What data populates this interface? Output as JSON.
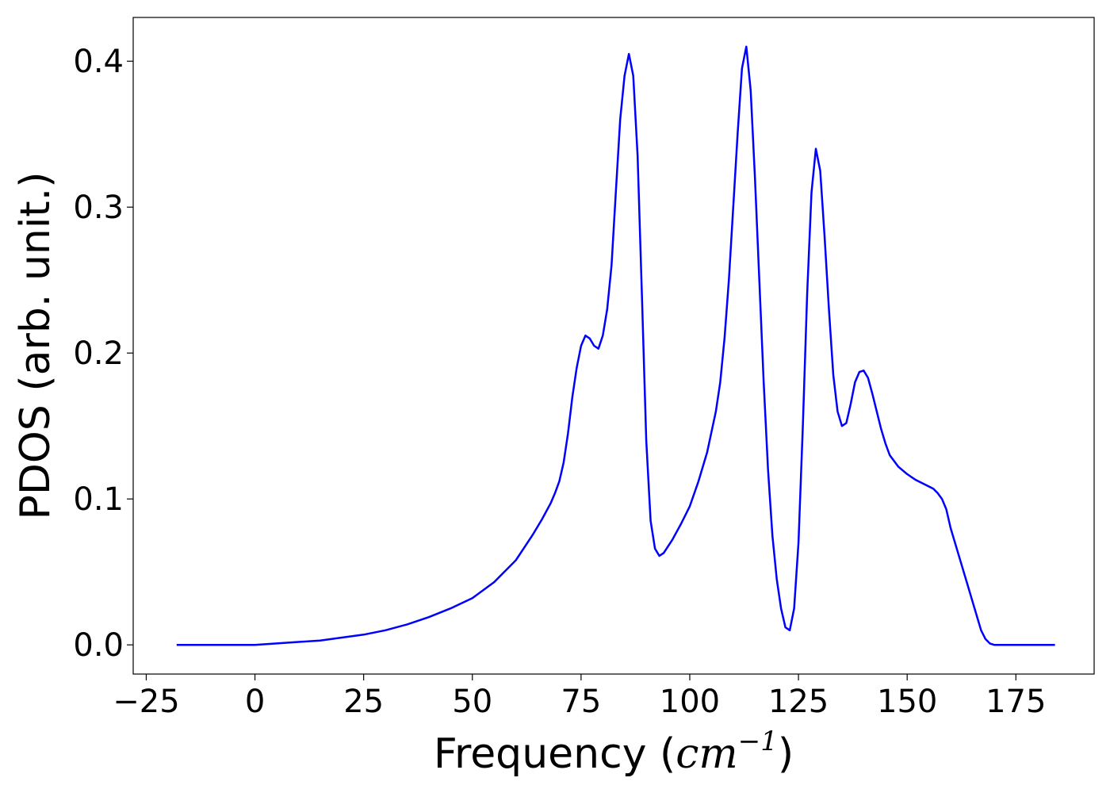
{
  "chart_data": {
    "type": "line",
    "title": "",
    "xlabel": "Frequency",
    "xlabel_unit_base": "cm",
    "xlabel_unit_exp": "−1",
    "ylabel": "PDOS (arb. unit.)",
    "xlim": [
      -28,
      193
    ],
    "ylim": [
      -0.02,
      0.43
    ],
    "xticks": [
      -25,
      0,
      25,
      50,
      75,
      100,
      125,
      150,
      175
    ],
    "xtick_labels": [
      "−25",
      "0",
      "25",
      "50",
      "75",
      "100",
      "125",
      "150",
      "175"
    ],
    "yticks": [
      0.0,
      0.1,
      0.2,
      0.3,
      0.4
    ],
    "ytick_labels": [
      "0.0",
      "0.1",
      "0.2",
      "0.3",
      "0.4"
    ],
    "grid": false,
    "series": [
      {
        "color": "#0000ff",
        "x": [
          -18,
          0,
          5,
          10,
          15,
          20,
          25,
          30,
          35,
          40,
          45,
          50,
          55,
          60,
          62,
          64,
          66,
          68,
          69,
          70,
          71,
          72,
          73,
          74,
          75,
          76,
          77,
          78,
          79,
          80,
          81,
          82,
          83,
          84,
          85,
          86,
          87,
          88,
          89,
          90,
          91,
          92,
          93,
          94,
          96,
          98,
          100,
          102,
          104,
          106,
          107,
          108,
          109,
          110,
          111,
          112,
          113,
          114,
          115,
          116,
          117,
          118,
          119,
          120,
          121,
          122,
          123,
          124,
          125,
          126,
          127,
          128,
          129,
          130,
          131,
          132,
          133,
          134,
          135,
          136,
          137,
          138,
          139,
          140,
          141,
          142,
          143,
          144,
          145,
          146,
          148,
          150,
          152,
          154,
          156,
          157,
          158,
          159,
          160,
          162,
          164,
          166,
          167,
          168,
          169,
          170,
          172,
          175,
          184
        ],
        "y": [
          0.0,
          0.0,
          0.001,
          0.002,
          0.003,
          0.005,
          0.007,
          0.01,
          0.014,
          0.019,
          0.025,
          0.032,
          0.043,
          0.058,
          0.067,
          0.076,
          0.086,
          0.097,
          0.104,
          0.112,
          0.125,
          0.145,
          0.17,
          0.19,
          0.205,
          0.212,
          0.21,
          0.205,
          0.203,
          0.212,
          0.23,
          0.26,
          0.31,
          0.36,
          0.39,
          0.405,
          0.39,
          0.335,
          0.24,
          0.14,
          0.085,
          0.066,
          0.061,
          0.063,
          0.072,
          0.083,
          0.095,
          0.112,
          0.132,
          0.16,
          0.18,
          0.21,
          0.25,
          0.3,
          0.35,
          0.395,
          0.41,
          0.38,
          0.32,
          0.25,
          0.18,
          0.12,
          0.075,
          0.045,
          0.025,
          0.012,
          0.01,
          0.025,
          0.07,
          0.15,
          0.24,
          0.31,
          0.34,
          0.325,
          0.28,
          0.23,
          0.185,
          0.16,
          0.15,
          0.152,
          0.165,
          0.18,
          0.187,
          0.188,
          0.183,
          0.172,
          0.16,
          0.148,
          0.138,
          0.13,
          0.122,
          0.117,
          0.113,
          0.11,
          0.107,
          0.104,
          0.1,
          0.093,
          0.08,
          0.06,
          0.04,
          0.02,
          0.01,
          0.004,
          0.001,
          0.0,
          0.0,
          0.0,
          0.0
        ]
      }
    ]
  }
}
